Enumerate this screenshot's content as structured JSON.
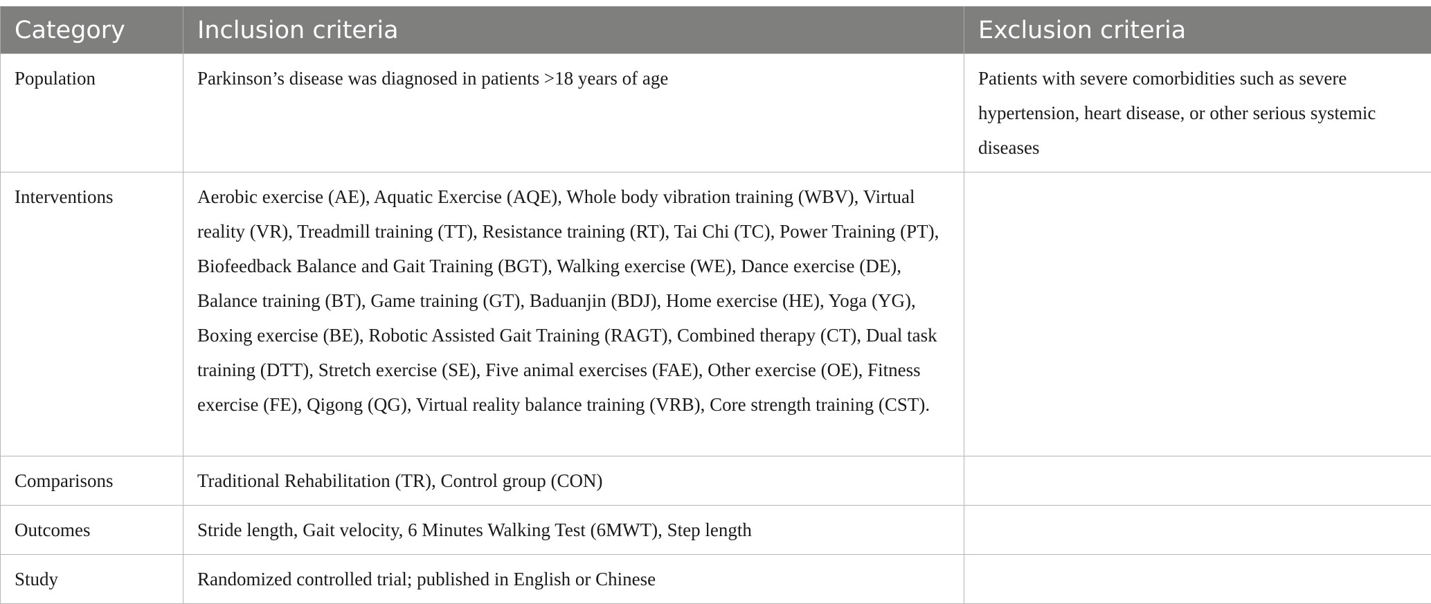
{
  "table": {
    "headers": {
      "category": "Category",
      "inclusion": "Inclusion criteria",
      "exclusion": "Exclusion criteria"
    },
    "rows": [
      {
        "category": "Population",
        "inclusion": "Parkinson’s disease was diagnosed in patients >18 years of age",
        "exclusion": "Patients with severe comorbidities such as severe hypertension, heart disease, or other serious systemic diseases"
      },
      {
        "category": "Interventions",
        "inclusion": "Aerobic exercise (AE), Aquatic Exercise (AQE), Whole body vibration training (WBV), Virtual reality (VR), Treadmill training (TT), Resistance training (RT), Tai Chi (TC), Power Training (PT), Biofeedback Balance and Gait Training (BGT), Walking exercise (WE), Dance exercise (DE), Balance training (BT), Game training (GT), Baduanjin (BDJ), Home exercise (HE), Yoga (YG), Boxing exercise (BE), Robotic Assisted Gait Training (RAGT), Combined therapy (CT), Dual task training (DTT), Stretch exercise (SE), Five animal exercises (FAE), Other exercise (OE), Fitness exercise (FE), Qigong (QG), Virtual reality balance training (VRB), Core strength training (CST).",
        "exclusion": ""
      },
      {
        "category": "Comparisons",
        "inclusion": "Traditional Rehabilitation (TR), Control group (CON)",
        "exclusion": ""
      },
      {
        "category": "Outcomes",
        "inclusion": "Stride length, Gait velocity, 6 Minutes Walking Test (6MWT), Step length",
        "exclusion": ""
      },
      {
        "category": "Study",
        "inclusion": "Randomized controlled trial; published in English or Chinese",
        "exclusion": ""
      }
    ]
  },
  "colors": {
    "header_bg": "#7f807e",
    "header_text": "#ffffff",
    "border": "#b5b5b5",
    "body_text": "#1a1a1a"
  }
}
